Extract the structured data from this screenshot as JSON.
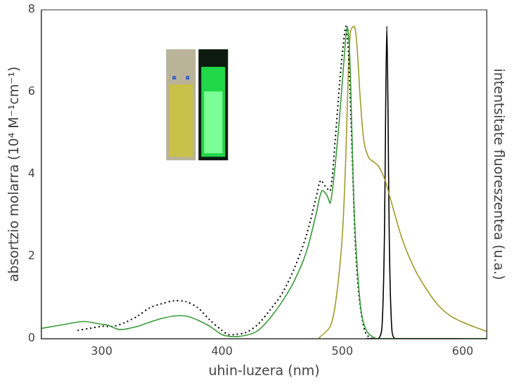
{
  "chart_data": {
    "type": "line",
    "x_label": "uhin-luzera (nm)",
    "y_label": "absortzio molarra (10⁴ M⁻¹cm⁻¹)",
    "y2_label": "intentsitate fluoreszentea (u.a.)",
    "xlim": [
      250,
      620
    ],
    "xticks": [
      300,
      400,
      500,
      600
    ],
    "ylim": [
      0,
      8
    ],
    "yticks": [
      0,
      2,
      4,
      6,
      8
    ],
    "y2lim": [
      0,
      8
    ],
    "y2ticks": [],
    "grid": false,
    "series": [
      {
        "color": "#3a9a3a",
        "line_style": "solid",
        "axis": "y",
        "x": [
          250,
          270,
          285,
          300,
          305,
          315,
          330,
          345,
          360,
          370,
          380,
          390,
          400,
          410,
          420,
          430,
          440,
          450,
          460,
          470,
          478,
          483,
          487,
          490,
          494,
          498,
          502,
          504,
          506,
          508,
          510,
          513,
          516,
          520,
          525,
          530,
          620
        ],
        "values": [
          0.25,
          0.35,
          0.42,
          0.35,
          0.33,
          0.22,
          0.3,
          0.45,
          0.55,
          0.55,
          0.45,
          0.3,
          0.1,
          0.05,
          0.08,
          0.2,
          0.5,
          0.9,
          1.4,
          2.1,
          3.0,
          3.6,
          3.5,
          3.3,
          4.2,
          5.5,
          7.0,
          7.6,
          7.0,
          5.0,
          3.0,
          1.5,
          0.6,
          0.2,
          0.05,
          0,
          0
        ]
      },
      {
        "color": "#000000",
        "line_style": "dotted",
        "axis": "y",
        "x": [
          280,
          290,
          300,
          310,
          320,
          330,
          340,
          350,
          360,
          370,
          380,
          390,
          400,
          405,
          410,
          420,
          430,
          440,
          450,
          460,
          470,
          478,
          482,
          486,
          490,
          494,
          498,
          501,
          503,
          505,
          507,
          509,
          511,
          514,
          517,
          520,
          525
        ],
        "values": [
          0.2,
          0.25,
          0.3,
          0.3,
          0.4,
          0.55,
          0.75,
          0.85,
          0.92,
          0.9,
          0.75,
          0.45,
          0.2,
          0.1,
          0.1,
          0.15,
          0.35,
          0.7,
          1.1,
          1.7,
          2.5,
          3.4,
          3.85,
          3.7,
          3.6,
          4.8,
          6.3,
          7.2,
          7.6,
          7.0,
          5.5,
          3.8,
          2.2,
          1.0,
          0.4,
          0.1,
          0
        ]
      },
      {
        "color": "#a09a2a",
        "line_style": "solid",
        "axis": "y2",
        "x": [
          480,
          490,
          495,
          500,
          503,
          505,
          507,
          510,
          512,
          515,
          518,
          522,
          526,
          530,
          535,
          540,
          550,
          560,
          570,
          580,
          590,
          600,
          610,
          620
        ],
        "values": [
          0,
          0.3,
          1.0,
          2.5,
          4.5,
          6.5,
          7.5,
          7.6,
          7.2,
          5.8,
          4.8,
          4.4,
          4.3,
          4.2,
          3.9,
          3.4,
          2.4,
          1.7,
          1.2,
          0.8,
          0.55,
          0.4,
          0.28,
          0.18
        ]
      },
      {
        "color": "#000000",
        "line_style": "solid",
        "axis": "y2",
        "x": [
          520,
          530,
          533,
          535,
          536,
          537,
          538,
          539,
          541,
          544,
          600
        ],
        "values": [
          0,
          0,
          0.3,
          2.5,
          5.5,
          7.6,
          5.5,
          2.5,
          0.3,
          0,
          0
        ]
      }
    ]
  }
}
